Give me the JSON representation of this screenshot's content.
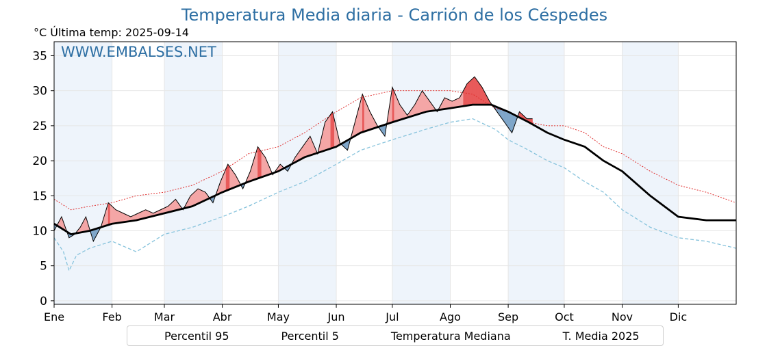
{
  "title": "Temperatura Media diaria - Carrión de los Céspedes",
  "subtitle": "°C   Última temp: 2025-09-14",
  "watermark": "WWW.EMBALSES.NET",
  "legend": {
    "p95": "Percentil 95",
    "p5": "Percentil 5",
    "median": "Temperatura Mediana",
    "current": "T. Media 2025"
  },
  "chart_data": {
    "type": "line",
    "title": "Temperatura Media diaria - Carrión de los Céspedes",
    "ylabel": "°C",
    "ylim": [
      -0.5,
      37
    ],
    "yticks": [
      0,
      5,
      10,
      15,
      20,
      25,
      30,
      35
    ],
    "xlim": [
      1,
      366
    ],
    "month_labels": [
      "Ene",
      "Feb",
      "Mar",
      "Abr",
      "May",
      "Jun",
      "Jul",
      "Ago",
      "Sep",
      "Oct",
      "Nov",
      "Dic"
    ],
    "month_starts": [
      1,
      32,
      60,
      91,
      121,
      152,
      182,
      213,
      244,
      274,
      305,
      335
    ],
    "grid": true,
    "legend_position": "bottom",
    "colors": {
      "p95": "#e03030",
      "p5": "#87c3dc",
      "median": "#000000",
      "current": "#000000",
      "above_fill": "#f4a6a6",
      "above_dark_fill": "#e85a5a",
      "below_fill": "#7fa6c9",
      "title": "#2e6fa3",
      "month_band": "#eef4fb"
    },
    "series": [
      {
        "name": "Percentil 95",
        "x": [
          1,
          10,
          20,
          32,
          45,
          60,
          75,
          91,
          105,
          121,
          135,
          152,
          165,
          182,
          200,
          213,
          225,
          237,
          244,
          255,
          265,
          274,
          285,
          295,
          305,
          320,
          335,
          350,
          366
        ],
        "y": [
          14.5,
          13,
          13.5,
          14,
          15,
          15.5,
          16.5,
          18.5,
          21,
          22,
          24,
          27,
          29,
          30,
          30,
          30,
          29.5,
          27.5,
          27,
          25.5,
          25,
          25,
          24,
          22,
          21,
          18.5,
          16.5,
          15.5,
          14
        ]
      },
      {
        "name": "Percentil 5",
        "x": [
          1,
          6,
          9,
          13,
          20,
          32,
          45,
          60,
          75,
          91,
          105,
          121,
          135,
          152,
          165,
          182,
          200,
          213,
          225,
          237,
          244,
          255,
          265,
          274,
          285,
          295,
          305,
          320,
          335,
          350,
          366
        ],
        "y": [
          9,
          7,
          4.3,
          6.5,
          7.5,
          8.5,
          7,
          9.5,
          10.5,
          12,
          13.5,
          15.5,
          17,
          19.5,
          21.5,
          23,
          24.5,
          25.5,
          26,
          24.5,
          23,
          21.5,
          20,
          19,
          17,
          15.5,
          13,
          10.5,
          9,
          8.5,
          7.5
        ]
      },
      {
        "name": "Temperatura Mediana",
        "x": [
          1,
          10,
          20,
          32,
          45,
          60,
          75,
          91,
          105,
          121,
          135,
          152,
          165,
          182,
          200,
          213,
          225,
          235,
          244,
          255,
          265,
          274,
          285,
          295,
          305,
          320,
          335,
          350,
          366
        ],
        "y": [
          11,
          9.5,
          10,
          11,
          11.5,
          12.5,
          13.5,
          15.5,
          17,
          18.5,
          20.5,
          22,
          24,
          25.5,
          27,
          27.5,
          28,
          28,
          27,
          25.5,
          24,
          23,
          22,
          20,
          18.5,
          15,
          12,
          11.5,
          11.5
        ]
      },
      {
        "name": "T. Media 2025",
        "x": [
          1,
          5,
          9,
          12,
          15,
          18,
          22,
          26,
          30,
          34,
          38,
          42,
          46,
          50,
          54,
          58,
          62,
          66,
          70,
          74,
          78,
          82,
          86,
          90,
          94,
          98,
          102,
          106,
          110,
          114,
          118,
          122,
          126,
          130,
          134,
          138,
          142,
          146,
          150,
          154,
          158,
          162,
          166,
          170,
          174,
          178,
          182,
          186,
          190,
          194,
          198,
          202,
          206,
          210,
          214,
          218,
          222,
          226,
          230,
          234,
          238,
          242,
          246,
          250,
          254,
          257
        ],
        "y": [
          10,
          12,
          9,
          9.5,
          10.5,
          12,
          8.5,
          10.5,
          14,
          13,
          12.5,
          12,
          12.5,
          13,
          12.5,
          13,
          13.5,
          14.5,
          13,
          15,
          16,
          15.5,
          14,
          17,
          19.5,
          18,
          16,
          18.5,
          22,
          20.5,
          18,
          19.5,
          18.5,
          20.5,
          22,
          23.5,
          21,
          25.5,
          27,
          22.5,
          21.5,
          25.5,
          29.5,
          27,
          25,
          23.5,
          30.5,
          28,
          26.5,
          28,
          30,
          28.5,
          27,
          29,
          28.5,
          29,
          31,
          32,
          30.5,
          28.5,
          27,
          25.5,
          24,
          27,
          26,
          26
        ]
      }
    ]
  }
}
